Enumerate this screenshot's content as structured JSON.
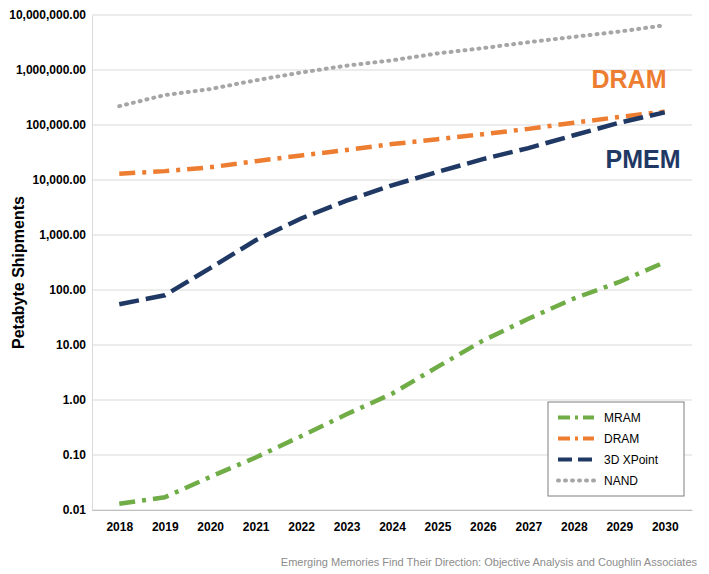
{
  "chart_data": {
    "type": "line",
    "y_label": "Petabyte Shipments",
    "source": "Emerging Memories Find Their Direction: Objective Analysis and Coughlin Associates",
    "annotations": [
      {
        "text": "DRAM",
        "color": "#ed7d31"
      },
      {
        "text": "PMEM",
        "color": "#1f3864"
      }
    ],
    "categories": [
      "2018",
      "2019",
      "2020",
      "2021",
      "2022",
      "2023",
      "2024",
      "2025",
      "2026",
      "2027",
      "2028",
      "2029",
      "2030"
    ],
    "series": [
      {
        "name": "MRAM",
        "color": "#70ad47",
        "line_style": "dashdot",
        "values": [
          0.013,
          0.017,
          0.04,
          0.09,
          0.22,
          0.55,
          1.3,
          4,
          12,
          30,
          70,
          140,
          320
        ]
      },
      {
        "name": "DRAM",
        "color": "#ed7d31",
        "line_style": "dashdot",
        "values": [
          13000,
          14500,
          17000,
          22000,
          28000,
          35000,
          45000,
          55000,
          68000,
          85000,
          110000,
          140000,
          175000
        ]
      },
      {
        "name": "3D XPoint",
        "color": "#1f3864",
        "line_style": "dashed",
        "values": [
          55,
          80,
          250,
          800,
          2000,
          4200,
          8000,
          14000,
          24000,
          38000,
          65000,
          110000,
          170000
        ]
      },
      {
        "name": "NAND",
        "color": "#a6a6a6",
        "line_style": "dotted",
        "values": [
          220000,
          350000,
          450000,
          650000,
          900000,
          1200000,
          1500000,
          2000000,
          2500000,
          3200000,
          4000000,
          5000000,
          6500000
        ]
      }
    ],
    "ylim": [
      0.01,
      10000000
    ],
    "yticks": [
      0.01,
      {
        "value": 0.1,
        "label": "0.10"
      },
      {
        "value": 1,
        "label": "1.00"
      },
      {
        "value": 10,
        "label": "10.00"
      },
      {
        "value": 100,
        "label": "100.00"
      },
      {
        "value": 1000,
        "label": "1,000.00"
      },
      {
        "value": 10000,
        "label": "10,000.00"
      },
      {
        "value": 100000,
        "label": "100,000.00"
      },
      {
        "value": 1000000,
        "label": "1,000,000.00"
      },
      {
        "value": 10000000,
        "label": "10,000,000.00"
      }
    ],
    "log": "y",
    "grid": true,
    "legend": "lower right"
  }
}
